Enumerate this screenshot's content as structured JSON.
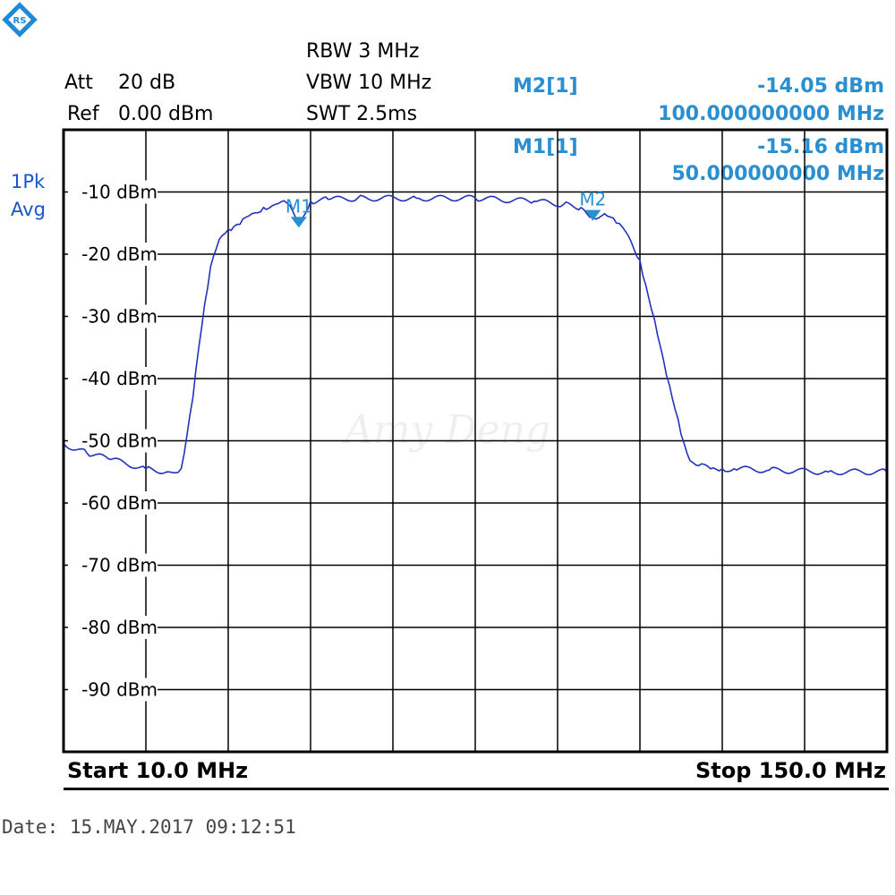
{
  "header": {
    "att_label": "Att",
    "att_value": "20 dB",
    "ref_label": "Ref",
    "ref_value": "0.00 dBm",
    "rbw": "RBW 3 MHz",
    "vbw": "VBW 10 MHz",
    "swt": "SWT 2.5ms"
  },
  "markers": [
    {
      "label": "M2[1]",
      "level": "-14.05 dBm",
      "freq": "100.000000000 MHz"
    },
    {
      "label": "M1[1]",
      "level": "-15.16 dBm",
      "freq": "50.000000000 MHz"
    }
  ],
  "trace_mode": {
    "line1": "1Pk",
    "line2": "Avg"
  },
  "footer": {
    "start": "Start 10.0 MHz",
    "stop": "Stop 150.0 MHz",
    "date": "Date: 15.MAY.2017  09:12:51"
  },
  "watermark": "Amy Deng",
  "colors": {
    "trace": "#2233bb",
    "marker": "#2a8fd0",
    "grid": "#000000"
  },
  "chart_data": {
    "type": "line",
    "title": "",
    "xlabel": "",
    "ylabel": "",
    "xlim": [
      10,
      150
    ],
    "ylim": [
      -100,
      0
    ],
    "y_ticks": [
      -10,
      -20,
      -30,
      -40,
      -50,
      -60,
      -70,
      -80,
      -90
    ],
    "y_tick_labels": [
      "-10 dBm",
      "-20 dBm",
      "-30 dBm",
      "-40 dBm",
      "-50 dBm",
      "-60 dBm",
      "-70 dBm",
      "-80 dBm",
      "-90 dBm"
    ],
    "grid": true,
    "series": [
      {
        "x": [
          10,
          14,
          18,
          24,
          28,
          30,
          31,
          32,
          33,
          34,
          35,
          36,
          37,
          38,
          39,
          40,
          42,
          44,
          46,
          48,
          50,
          52,
          55,
          60,
          70,
          80,
          90,
          95,
          98,
          100,
          102,
          104,
          106,
          108,
          109,
          110,
          111,
          112,
          113,
          114,
          115,
          116,
          117,
          118,
          120,
          122,
          124,
          130,
          140,
          150
        ],
        "y": [
          -50.5,
          -52,
          -53,
          -54.5,
          -55,
          -54.5,
          -49,
          -43,
          -35,
          -28,
          -22,
          -19,
          -17,
          -16,
          -15.5,
          -15.2,
          -13.5,
          -12.5,
          -12,
          -11.8,
          -15.16,
          -11.5,
          -11.2,
          -11,
          -11,
          -11,
          -11.5,
          -12,
          -12.5,
          -14.05,
          -13.5,
          -15,
          -17,
          -21,
          -25,
          -29,
          -33,
          -37,
          -41,
          -45,
          -49,
          -52,
          -53.5,
          -54,
          -54.5,
          -54.5,
          -54.5,
          -54.7,
          -55,
          -55
        ]
      }
    ],
    "markers": [
      {
        "name": "M1",
        "x": 50,
        "y": -15.16
      },
      {
        "name": "M2",
        "x": 100,
        "y": -14.05
      }
    ]
  }
}
